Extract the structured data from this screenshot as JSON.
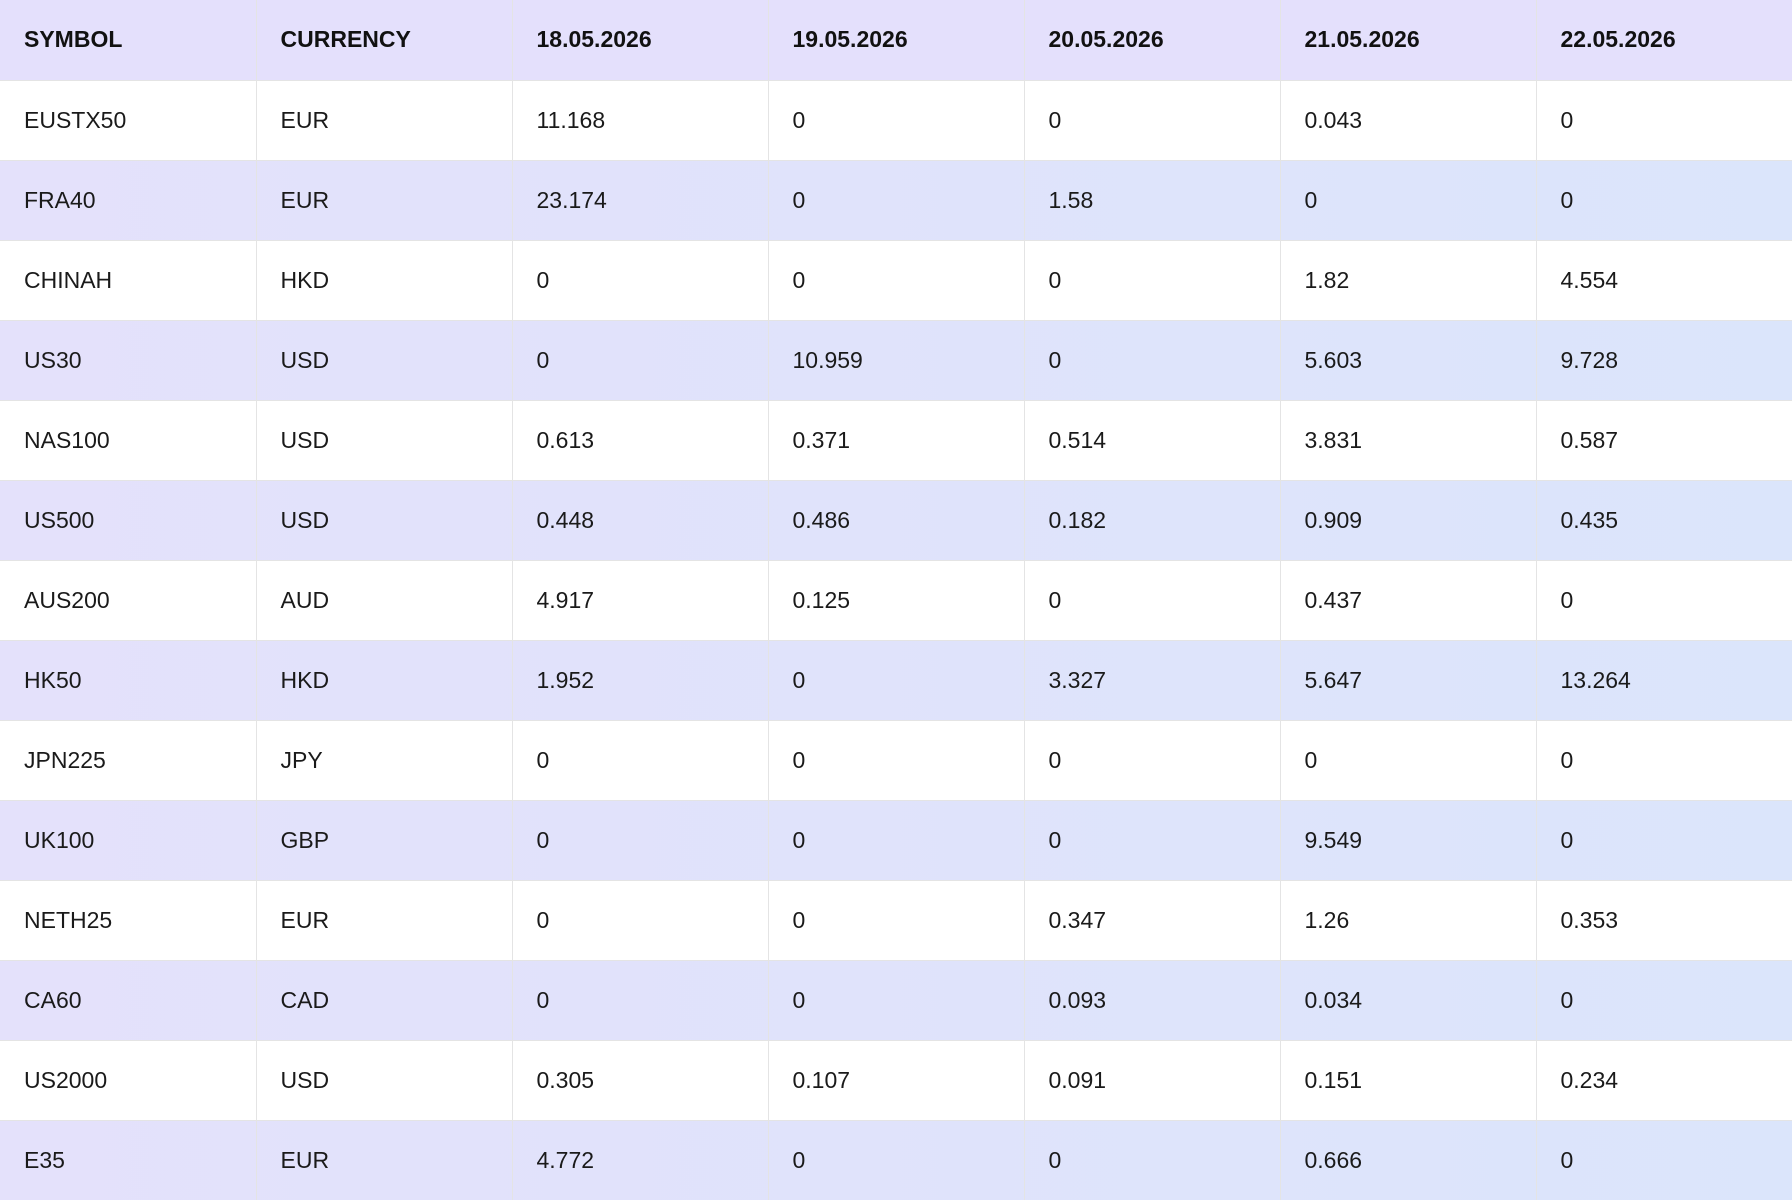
{
  "table": {
    "header": [
      "SYMBOL",
      "CURRENCY",
      "18.05.2026",
      "19.05.2026",
      "20.05.2026",
      "21.05.2026",
      "22.05.2026"
    ],
    "rows": [
      [
        "EUSTX50",
        "EUR",
        "11.168",
        "0",
        "0",
        "0.043",
        "0"
      ],
      [
        "FRA40",
        "EUR",
        "23.174",
        "0",
        "1.58",
        "0",
        "0"
      ],
      [
        "CHINAH",
        "HKD",
        "0",
        "0",
        "0",
        "1.82",
        "4.554"
      ],
      [
        "US30",
        "USD",
        "0",
        "10.959",
        "0",
        "5.603",
        "9.728"
      ],
      [
        "NAS100",
        "USD",
        "0.613",
        "0.371",
        "0.514",
        "3.831",
        "0.587"
      ],
      [
        "US500",
        "USD",
        "0.448",
        "0.486",
        "0.182",
        "0.909",
        "0.435"
      ],
      [
        "AUS200",
        "AUD",
        "4.917",
        "0.125",
        "0",
        "0.437",
        "0"
      ],
      [
        "HK50",
        "HKD",
        "1.952",
        "0",
        "3.327",
        "5.647",
        "13.264"
      ],
      [
        "JPN225",
        "JPY",
        "0",
        "0",
        "0",
        "0",
        "0"
      ],
      [
        "UK100",
        "GBP",
        "0",
        "0",
        "0",
        "9.549",
        "0"
      ],
      [
        "NETH25",
        "EUR",
        "0",
        "0",
        "0.347",
        "1.26",
        "0.353"
      ],
      [
        "CA60",
        "CAD",
        "0",
        "0",
        "0.093",
        "0.034",
        "0"
      ],
      [
        "US2000",
        "USD",
        "0.305",
        "0.107",
        "0.091",
        "0.151",
        "0.234"
      ],
      [
        "E35",
        "EUR",
        "4.772",
        "0",
        "0",
        "0.666",
        "0"
      ]
    ]
  }
}
